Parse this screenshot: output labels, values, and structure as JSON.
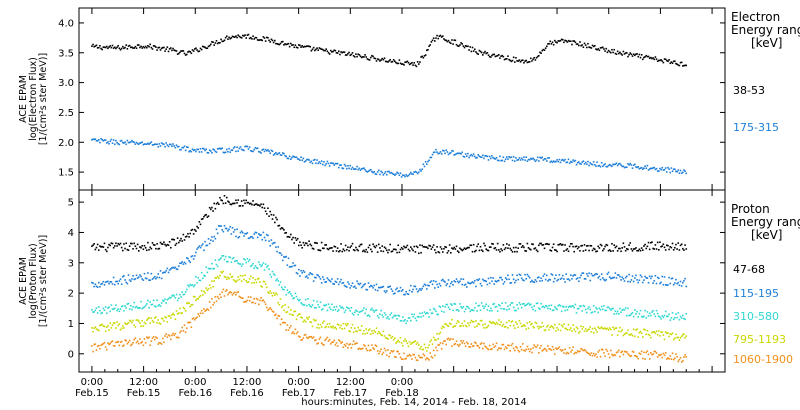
{
  "chart_data": [
    {
      "type": "scatter",
      "panel": "electron",
      "ylabel": [
        "ACE EPAM",
        "log(Electron Flux)",
        "[1/(cm²s ster MeV)]"
      ],
      "ylim": [
        1.2,
        4.25
      ],
      "yticks": [
        1.5,
        2.0,
        2.5,
        3.0,
        3.5,
        4.0
      ],
      "ytick_labels": [
        "1.5",
        "2.0",
        "2.5",
        "3.0",
        "3.5",
        "4.0"
      ],
      "legend_title": [
        "Electron",
        "Energy range",
        "[keV]"
      ],
      "series": [
        {
          "name": "38-53",
          "color": "#000000",
          "x": [
            0,
            6,
            12,
            18,
            22,
            27,
            32,
            36,
            42,
            48,
            54,
            60,
            66,
            72,
            75.5,
            78,
            80,
            84,
            90,
            96,
            100,
            103,
            106,
            110,
            116,
            122,
            130,
            138
          ],
          "y": [
            3.6,
            3.58,
            3.62,
            3.55,
            3.48,
            3.62,
            3.77,
            3.78,
            3.7,
            3.6,
            3.53,
            3.47,
            3.4,
            3.33,
            3.3,
            3.55,
            3.78,
            3.68,
            3.5,
            3.42,
            3.35,
            3.4,
            3.65,
            3.7,
            3.6,
            3.5,
            3.4,
            3.3
          ]
        },
        {
          "name": "175-315",
          "color": "#1e7fd8",
          "x": [
            0,
            6,
            12,
            18,
            24,
            30,
            36,
            42,
            48,
            54,
            60,
            66,
            72,
            75.5,
            78,
            80,
            84,
            90,
            96,
            102,
            108,
            114,
            120,
            126,
            132,
            138
          ],
          "y": [
            2.03,
            2.0,
            1.98,
            1.95,
            1.86,
            1.86,
            1.9,
            1.82,
            1.72,
            1.65,
            1.58,
            1.5,
            1.45,
            1.48,
            1.68,
            1.85,
            1.82,
            1.75,
            1.72,
            1.72,
            1.7,
            1.65,
            1.62,
            1.6,
            1.55,
            1.5
          ]
        }
      ]
    },
    {
      "type": "scatter",
      "panel": "proton",
      "ylabel": [
        "ACE EPAM",
        "log(Proton Flux)",
        "[1/(cm²s ster MeV)]"
      ],
      "ylim": [
        -0.6,
        5.4
      ],
      "yticks": [
        0,
        1,
        2,
        3,
        4,
        5
      ],
      "ytick_labels": [
        "0",
        "1",
        "2",
        "3",
        "4",
        "5"
      ],
      "legend_title": [
        "Proton",
        "Energy range",
        "[keV]"
      ],
      "series": [
        {
          "name": "47-68",
          "color": "#000000",
          "x": [
            0,
            8,
            16,
            20,
            24,
            28,
            30,
            33,
            36,
            38,
            40,
            42,
            45,
            48,
            52,
            56,
            60,
            66,
            72,
            80,
            90,
            100,
            110,
            120,
            130,
            138
          ],
          "y": [
            3.5,
            3.52,
            3.55,
            3.7,
            4.1,
            4.8,
            5.1,
            5.05,
            4.95,
            4.95,
            4.8,
            4.5,
            3.9,
            3.65,
            3.55,
            3.5,
            3.5,
            3.48,
            3.45,
            3.45,
            3.5,
            3.5,
            3.5,
            3.5,
            3.55,
            3.55
          ]
        },
        {
          "name": "115-195",
          "color": "#1e7fd8",
          "x": [
            0,
            8,
            16,
            20,
            24,
            28,
            30,
            33,
            36,
            40,
            42,
            45,
            48,
            52,
            56,
            60,
            66,
            72,
            80,
            90,
            100,
            110,
            120,
            130,
            138
          ],
          "y": [
            2.3,
            2.45,
            2.6,
            2.8,
            3.3,
            3.8,
            4.2,
            4.0,
            3.9,
            3.9,
            3.6,
            3.1,
            2.7,
            2.5,
            2.4,
            2.3,
            2.2,
            2.05,
            2.3,
            2.35,
            2.5,
            2.5,
            2.55,
            2.45,
            2.35
          ]
        },
        {
          "name": "310-580",
          "color": "#2fd8d0",
          "x": [
            0,
            8,
            16,
            20,
            24,
            28,
            30,
            33,
            36,
            40,
            42,
            45,
            48,
            52,
            56,
            60,
            66,
            72,
            80,
            82,
            90,
            100,
            110,
            120,
            130,
            138
          ],
          "y": [
            1.4,
            1.55,
            1.7,
            1.9,
            2.4,
            2.9,
            3.1,
            3.05,
            3.0,
            2.9,
            2.6,
            2.1,
            1.8,
            1.6,
            1.5,
            1.4,
            1.35,
            1.1,
            1.4,
            1.5,
            1.55,
            1.55,
            1.5,
            1.45,
            1.3,
            1.2
          ]
        },
        {
          "name": "795-1193",
          "color": "#c8d800",
          "x": [
            0,
            8,
            16,
            20,
            24,
            28,
            30,
            33,
            36,
            40,
            42,
            45,
            48,
            52,
            56,
            60,
            66,
            72,
            78,
            80,
            82,
            84,
            90,
            100,
            110,
            120,
            130,
            138
          ],
          "y": [
            0.8,
            0.95,
            1.1,
            1.3,
            1.8,
            2.3,
            2.6,
            2.5,
            2.45,
            2.3,
            2.0,
            1.5,
            1.2,
            1.0,
            0.95,
            0.85,
            0.75,
            0.4,
            0.2,
            0.55,
            0.95,
            1.0,
            1.0,
            0.95,
            0.85,
            0.75,
            0.65,
            0.5
          ]
        },
        {
          "name": "1060-1900",
          "color": "#f0901c",
          "x": [
            0,
            8,
            16,
            20,
            24,
            28,
            30,
            33,
            36,
            40,
            42,
            45,
            48,
            52,
            56,
            60,
            66,
            72,
            78,
            80,
            82,
            84,
            90,
            100,
            110,
            120,
            130,
            138
          ],
          "y": [
            0.2,
            0.35,
            0.45,
            0.65,
            1.1,
            1.7,
            2.0,
            1.95,
            1.8,
            1.7,
            1.4,
            0.9,
            0.6,
            0.45,
            0.4,
            0.3,
            0.15,
            -0.1,
            -0.15,
            0.1,
            0.4,
            0.35,
            0.3,
            0.2,
            0.1,
            0.0,
            -0.05,
            -0.15
          ]
        }
      ]
    }
  ],
  "x_axis": {
    "xlim": [
      -3,
      147
    ],
    "ticks": [
      0,
      12,
      24,
      36,
      48,
      60,
      72,
      84,
      96,
      108,
      120,
      132,
      144
    ],
    "major_ticks": [
      0,
      12,
      24,
      36,
      48,
      60,
      72,
      84,
      96,
      108,
      120,
      132,
      144
    ],
    "labels": [
      {
        "at": 0,
        "time": "0:00",
        "date": "Feb.15"
      },
      {
        "at": 12,
        "time": "12:00",
        "date": "Feb.15"
      },
      {
        "at": 24,
        "time": "0:00",
        "date": "Feb.16"
      },
      {
        "at": 36,
        "time": "12:00",
        "date": "Feb.16"
      },
      {
        "at": 48,
        "time": "0:00",
        "date": "Feb.17"
      },
      {
        "at": 60,
        "time": "12:00",
        "date": "Feb.17"
      },
      {
        "at": 72,
        "time": "0:00",
        "date": "Feb.18"
      }
    ],
    "title": "hours:minutes, Feb. 14, 2014 - Feb. 18, 2014"
  }
}
